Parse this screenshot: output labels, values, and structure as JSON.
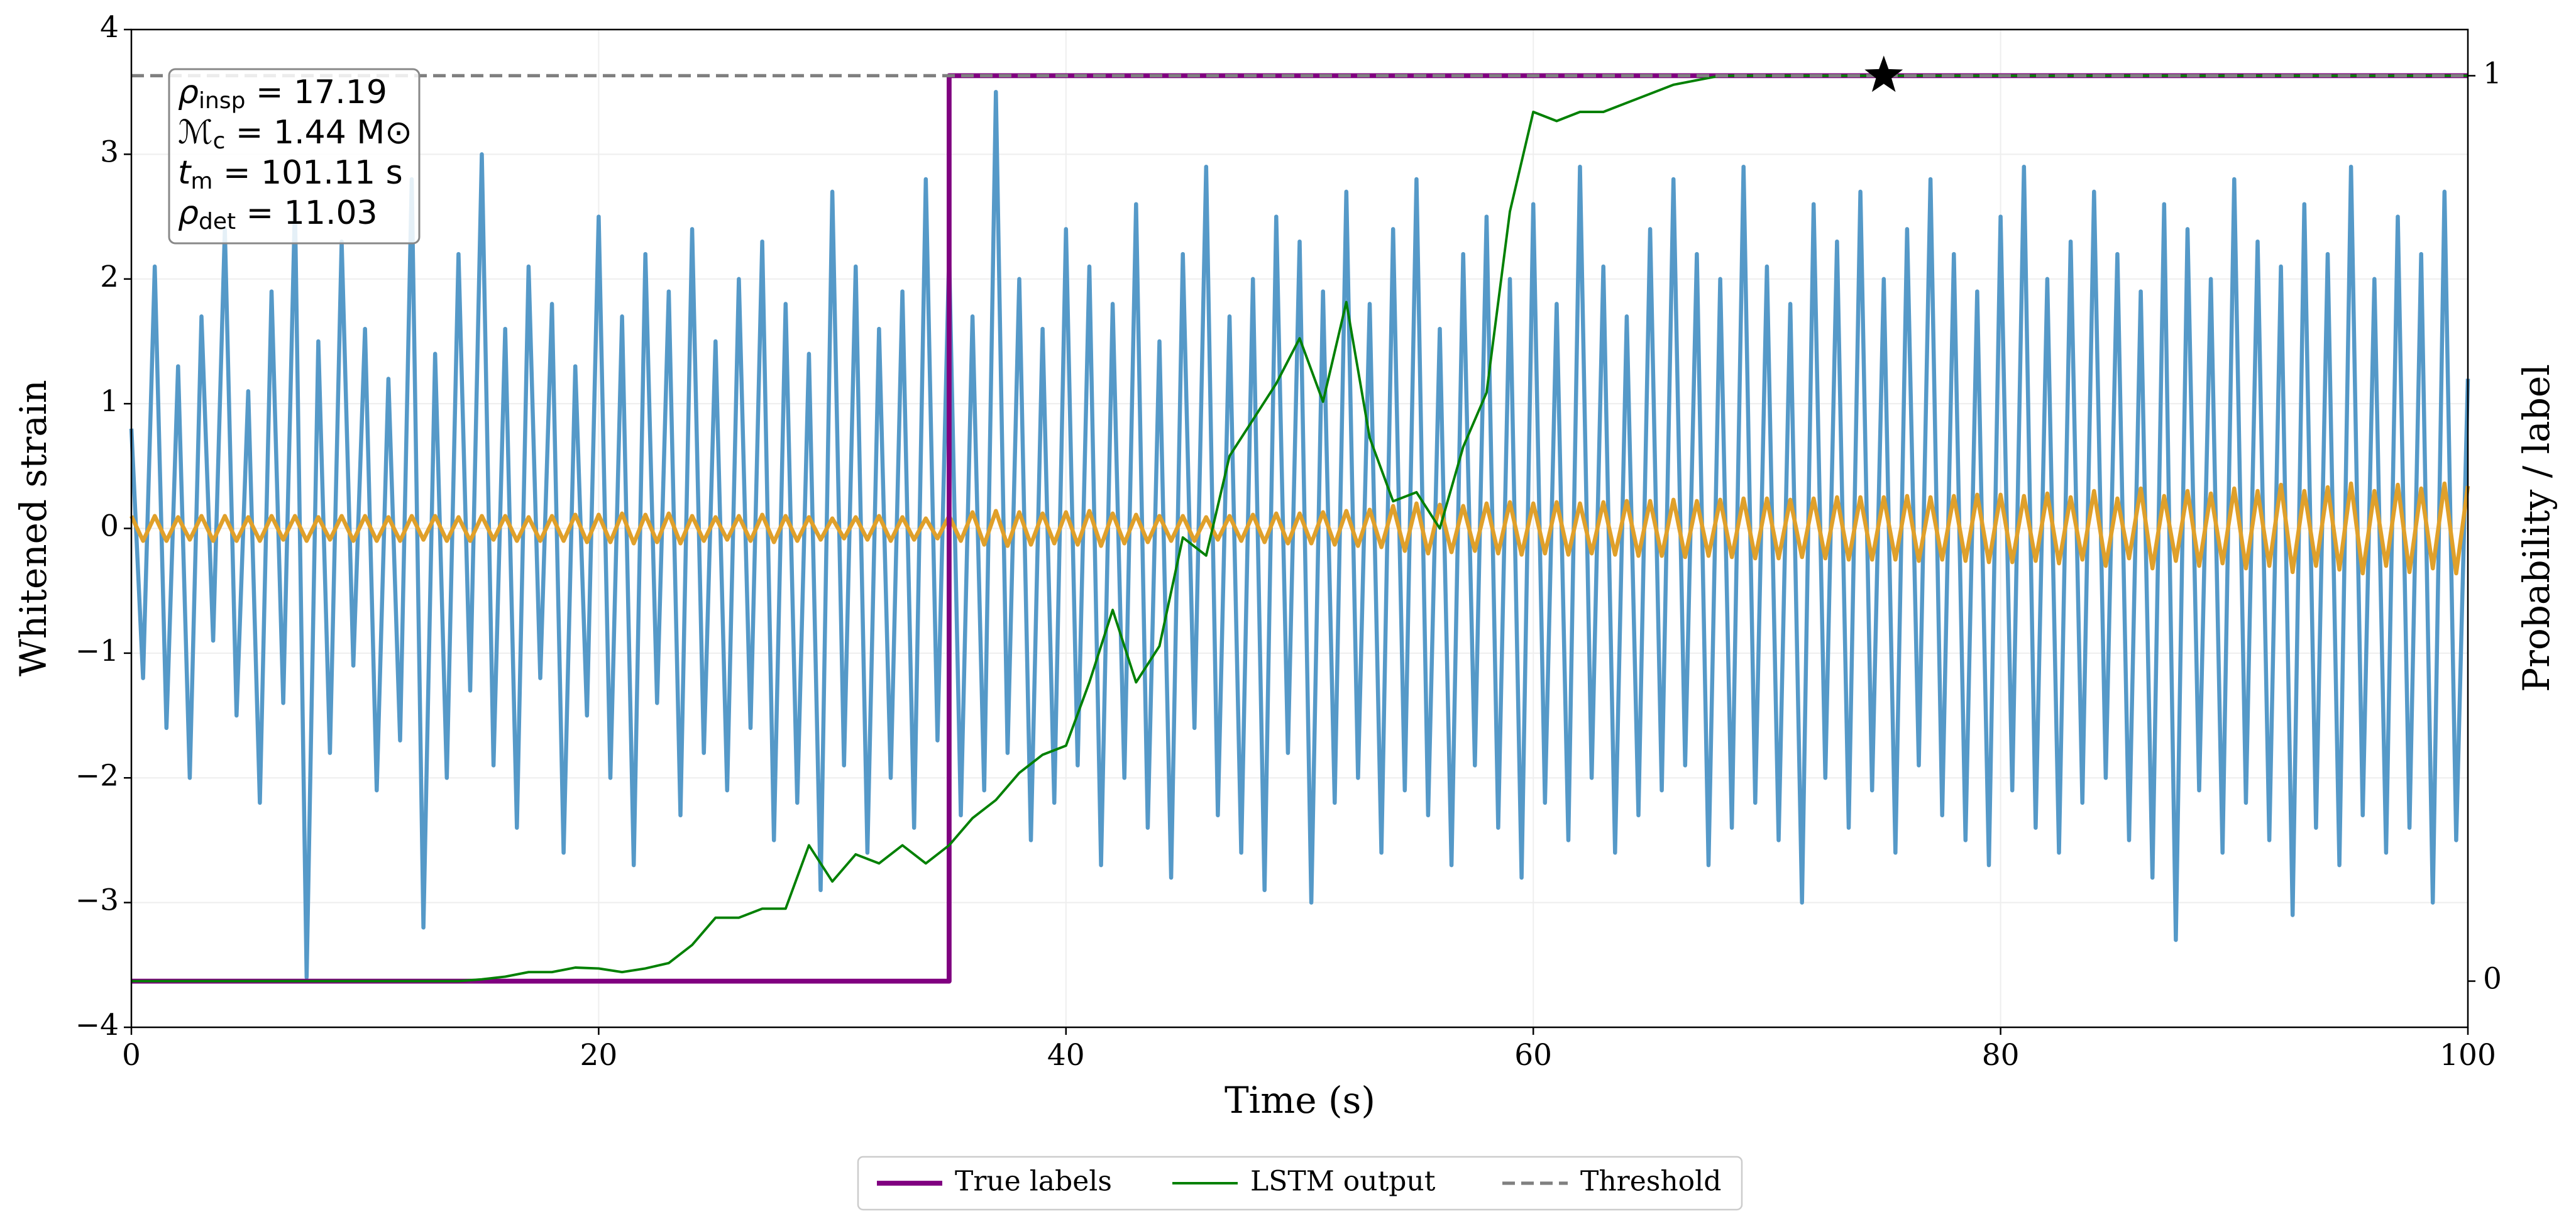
{
  "chart_data": {
    "type": "line",
    "xlabel": "Time (s)",
    "ylabel": "Whitened strain",
    "y2label": "Probability / label",
    "xlim": [
      0,
      100
    ],
    "xticks": [
      0,
      20,
      40,
      60,
      80,
      100
    ],
    "ylim": [
      -4,
      4
    ],
    "yticks": [
      {
        "value": -4,
        "label": "−4"
      },
      {
        "value": -3,
        "label": "−3"
      },
      {
        "value": -2,
        "label": "−2"
      },
      {
        "value": -1,
        "label": "−1"
      },
      0,
      1,
      2,
      3,
      4
    ],
    "y2lim": [
      -0.051,
      1.051
    ],
    "y2ticks": [
      0,
      1
    ],
    "grid": true,
    "legend": "bottom",
    "annotations": [
      {
        "var": "ρ",
        "sub": "insp",
        "rest": " = 17.19"
      },
      {
        "var": "ℳ",
        "sub": "c",
        "rest": " = 1.44 M⊙"
      },
      {
        "var": "t",
        "sub": "m",
        "rest": " = 101.11 s"
      },
      {
        "var": "ρ",
        "sub": "det",
        "rest": " = 11.03"
      }
    ],
    "detection": {
      "x": 75,
      "value": 1
    },
    "x": [
      0,
      0.5,
      1,
      1.5,
      2,
      2.5,
      3,
      3.5,
      4,
      4.5,
      5,
      5.5,
      6,
      6.5,
      7,
      7.5,
      8,
      8.5,
      9,
      9.5,
      10,
      10.5,
      11,
      11.5,
      12,
      12.5,
      13,
      13.5,
      14,
      14.5,
      15,
      15.5,
      16,
      16.5,
      17,
      17.5,
      18,
      18.5,
      19,
      19.5,
      20,
      20.5,
      21,
      21.5,
      22,
      22.5,
      23,
      23.5,
      24,
      24.5,
      25,
      25.5,
      26,
      26.5,
      27,
      27.5,
      28,
      28.5,
      29,
      29.5,
      30,
      30.5,
      31,
      31.5,
      32,
      32.5,
      33,
      33.5,
      34,
      34.5,
      35,
      35.5,
      36,
      36.5,
      37,
      37.5,
      38,
      38.5,
      39,
      39.5,
      40,
      40.5,
      41,
      41.5,
      42,
      42.5,
      43,
      43.5,
      44,
      44.5,
      45,
      45.5,
      46,
      46.5,
      47,
      47.5,
      48,
      48.5,
      49,
      49.5,
      50,
      50.5,
      51,
      51.5,
      52,
      52.5,
      53,
      53.5,
      54,
      54.5,
      55,
      55.5,
      56,
      56.5,
      57,
      57.5,
      58,
      58.5,
      59,
      59.5,
      60,
      60.5,
      61,
      61.5,
      62,
      62.5,
      63,
      63.5,
      64,
      64.5,
      65,
      65.5,
      66,
      66.5,
      67,
      67.5,
      68,
      68.5,
      69,
      69.5,
      70,
      70.5,
      71,
      71.5,
      72,
      72.5,
      73,
      73.5,
      74,
      74.5,
      75,
      75.5,
      76,
      76.5,
      77,
      77.5,
      78,
      78.5,
      79,
      79.5,
      80,
      80.5,
      81,
      81.5,
      82,
      82.5,
      83,
      83.5,
      84,
      84.5,
      85,
      85.5,
      86,
      86.5,
      87,
      87.5,
      88,
      88.5,
      89,
      89.5,
      90,
      90.5,
      91,
      91.5,
      92,
      92.5,
      93,
      93.5,
      94,
      94.5,
      95,
      95.5,
      96,
      96.5,
      97,
      97.5,
      98,
      98.5,
      99,
      99.5,
      100
    ],
    "series": [
      {
        "color": "#5599c8",
        "values": [
          0.8,
          -1.2,
          2.1,
          -1.6,
          1.3,
          -2.0,
          1.7,
          -0.9,
          2.4,
          -1.5,
          1.1,
          -2.2,
          1.9,
          -1.4,
          2.6,
          -3.6,
          1.5,
          -1.8,
          2.3,
          -1.1,
          1.6,
          -2.1,
          1.2,
          -1.7,
          2.8,
          -3.2,
          1.4,
          -2.0,
          2.2,
          -1.3,
          3.0,
          -1.9,
          1.6,
          -2.4,
          2.1,
          -1.2,
          1.8,
          -2.6,
          1.3,
          -1.5,
          2.5,
          -2.0,
          1.7,
          -2.7,
          2.2,
          -1.4,
          1.9,
          -2.3,
          2.4,
          -1.8,
          1.5,
          -2.1,
          2.0,
          -1.6,
          2.3,
          -2.5,
          1.8,
          -2.2,
          1.4,
          -2.9,
          2.7,
          -1.9,
          2.1,
          -2.6,
          1.6,
          -2.0,
          1.9,
          -2.4,
          2.8,
          -1.7,
          2.2,
          -2.3,
          1.7,
          -2.1,
          3.5,
          -1.8,
          2.0,
          -2.5,
          1.6,
          -2.2,
          2.4,
          -1.9,
          2.1,
          -2.7,
          1.8,
          -2.0,
          2.6,
          -2.4,
          1.5,
          -2.8,
          2.2,
          -1.6,
          2.9,
          -2.3,
          1.7,
          -2.6,
          2.0,
          -2.9,
          2.5,
          -1.8,
          2.3,
          -3.0,
          1.9,
          -2.2,
          2.7,
          -2.0,
          1.8,
          -2.6,
          2.4,
          -2.1,
          2.8,
          -2.3,
          1.6,
          -2.7,
          2.2,
          -1.9,
          2.5,
          -2.4,
          2.0,
          -2.8,
          2.6,
          -2.2,
          1.8,
          -2.5,
          2.9,
          -2.0,
          2.1,
          -2.6,
          1.7,
          -2.3,
          2.4,
          -2.1,
          2.8,
          -1.9,
          2.2,
          -2.7,
          2.0,
          -2.4,
          2.9,
          -2.2,
          2.1,
          -2.5,
          1.8,
          -3.0,
          2.6,
          -2.0,
          2.3,
          -2.4,
          2.7,
          -2.1,
          2.0,
          -2.6,
          2.4,
          -1.9,
          2.8,
          -2.3,
          2.2,
          -2.5,
          1.9,
          -2.7,
          2.5,
          -2.1,
          2.9,
          -2.4,
          2.0,
          -2.6,
          2.3,
          -2.2,
          2.7,
          -2.0,
          2.2,
          -2.5,
          1.9,
          -2.8,
          2.6,
          -3.3,
          2.4,
          -2.1,
          2.0,
          -2.6,
          2.8,
          -2.2,
          2.3,
          -2.5,
          2.1,
          -3.1,
          2.6,
          -2.4,
          2.2,
          -2.7,
          2.9,
          -2.3,
          2.0,
          -2.6,
          2.5,
          -2.4,
          2.2,
          -3.0,
          2.7,
          -2.5,
          1.2
        ]
      },
      {
        "color": "#e0a02a",
        "values": [
          0.1,
          -0.1,
          0.1,
          -0.1,
          0.09,
          -0.09,
          0.1,
          -0.1,
          0.1,
          -0.1,
          0.09,
          -0.1,
          0.1,
          -0.09,
          0.1,
          -0.1,
          0.09,
          -0.09,
          0.1,
          -0.1,
          0.1,
          -0.1,
          0.09,
          -0.1,
          0.1,
          -0.09,
          0.1,
          -0.1,
          0.09,
          -0.1,
          0.1,
          -0.09,
          0.1,
          -0.1,
          0.09,
          -0.1,
          0.1,
          -0.1,
          0.11,
          -0.11,
          0.11,
          -0.11,
          0.12,
          -0.12,
          0.11,
          -0.11,
          0.12,
          -0.12,
          0.1,
          -0.1,
          0.09,
          -0.09,
          0.1,
          -0.1,
          0.11,
          -0.11,
          0.1,
          -0.1,
          0.09,
          -0.09,
          0.08,
          -0.08,
          0.09,
          -0.09,
          0.1,
          -0.1,
          0.09,
          -0.09,
          0.08,
          -0.08,
          0.1,
          -0.1,
          0.13,
          -0.13,
          0.14,
          -0.14,
          0.13,
          -0.13,
          0.12,
          -0.12,
          0.13,
          -0.13,
          0.14,
          -0.14,
          0.12,
          -0.12,
          0.11,
          -0.11,
          0.1,
          -0.1,
          0.1,
          -0.1,
          0.09,
          -0.09,
          0.1,
          -0.1,
          0.11,
          -0.11,
          0.12,
          -0.12,
          0.12,
          -0.12,
          0.13,
          -0.13,
          0.14,
          -0.14,
          0.15,
          -0.15,
          0.18,
          -0.18,
          0.2,
          -0.2,
          0.19,
          -0.19,
          0.18,
          -0.18,
          0.2,
          -0.2,
          0.21,
          -0.21,
          0.2,
          -0.2,
          0.21,
          -0.21,
          0.2,
          -0.2,
          0.21,
          -0.21,
          0.22,
          -0.22,
          0.22,
          -0.22,
          0.23,
          -0.23,
          0.22,
          -0.22,
          0.23,
          -0.23,
          0.24,
          -0.24,
          0.24,
          -0.24,
          0.23,
          -0.23,
          0.24,
          -0.24,
          0.25,
          -0.25,
          0.25,
          -0.25,
          0.25,
          -0.25,
          0.26,
          -0.26,
          0.25,
          -0.25,
          0.26,
          -0.26,
          0.27,
          -0.27,
          0.27,
          -0.27,
          0.26,
          -0.26,
          0.28,
          -0.28,
          0.25,
          -0.25,
          0.3,
          -0.3,
          0.24,
          -0.24,
          0.32,
          -0.32,
          0.26,
          -0.26,
          0.3,
          -0.3,
          0.28,
          -0.28,
          0.32,
          -0.32,
          0.3,
          -0.3,
          0.35,
          -0.35,
          0.3,
          -0.3,
          0.33,
          -0.33,
          0.36,
          -0.36,
          0.3,
          -0.3,
          0.35,
          -0.35,
          0.32,
          -0.32,
          0.36,
          -0.36,
          0.34
        ]
      },
      {
        "name": "True labels",
        "color": "#800080",
        "width": 3,
        "axis": "y2",
        "x": [
          0,
          35,
          35,
          100
        ],
        "values": [
          0,
          0,
          1,
          1
        ]
      },
      {
        "name": "LSTM output",
        "color": "#008000",
        "width": 1.5,
        "axis": "y2",
        "x": [
          0,
          1,
          2,
          3,
          4,
          5,
          6,
          7,
          8,
          9,
          10,
          11,
          12,
          13,
          14,
          15,
          16,
          17,
          18,
          19,
          20,
          21,
          22,
          23,
          24,
          25,
          26,
          27,
          28,
          29,
          30,
          31,
          32,
          33,
          34,
          35,
          36,
          37,
          38,
          39,
          40,
          41,
          42,
          43,
          44,
          45,
          46,
          47,
          48,
          49,
          50,
          51,
          52,
          53,
          54,
          55,
          56,
          57,
          58,
          59,
          60,
          61,
          62,
          63,
          64,
          65,
          66,
          67,
          68,
          69,
          70,
          71,
          72,
          73,
          74,
          75,
          76,
          77,
          78,
          79,
          80,
          81,
          82,
          83,
          84,
          85,
          86,
          87,
          88,
          89,
          90,
          91,
          92,
          93,
          94,
          95,
          96,
          97,
          98,
          99,
          100
        ],
        "values": [
          0,
          0,
          0,
          0,
          0,
          0,
          0,
          0,
          0,
          0,
          0,
          0,
          0,
          0,
          0,
          0.002,
          0.005,
          0.01,
          0.01,
          0.015,
          0.014,
          0.01,
          0.014,
          0.02,
          0.04,
          0.07,
          0.07,
          0.08,
          0.08,
          0.15,
          0.11,
          0.14,
          0.13,
          0.15,
          0.13,
          0.15,
          0.18,
          0.2,
          0.23,
          0.25,
          0.26,
          0.33,
          0.41,
          0.33,
          0.37,
          0.49,
          0.47,
          0.58,
          0.62,
          0.66,
          0.71,
          0.64,
          0.75,
          0.6,
          0.53,
          0.54,
          0.5,
          0.59,
          0.65,
          0.85,
          0.96,
          0.95,
          0.96,
          0.96,
          0.97,
          0.98,
          0.99,
          0.995,
          1,
          1,
          1,
          1,
          1,
          1,
          1,
          1,
          1,
          1,
          1,
          1,
          1,
          1,
          1,
          1,
          1,
          1,
          1,
          1,
          1,
          1,
          1,
          1,
          1,
          1,
          1,
          1,
          1,
          1,
          1,
          1,
          1
        ]
      },
      {
        "name": "Threshold",
        "color": "#808080",
        "width": 2,
        "dash": true,
        "axis": "y2",
        "x": [
          0,
          100
        ],
        "values": [
          1,
          1
        ]
      }
    ]
  }
}
